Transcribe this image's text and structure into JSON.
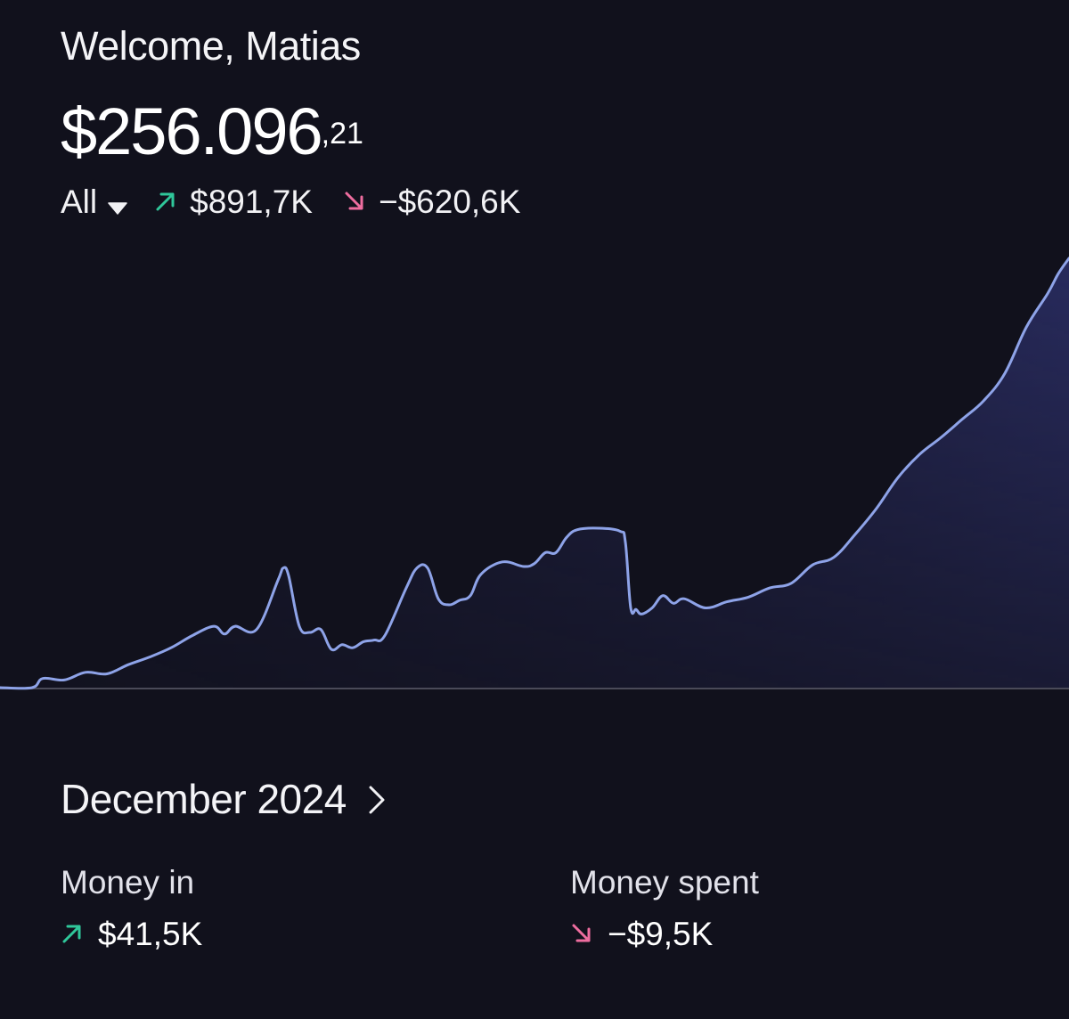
{
  "header": {
    "welcome": "Welcome, Matias"
  },
  "balance": {
    "main": "$256.096",
    "cents": ",21"
  },
  "summary": {
    "filter_label": "All",
    "money_in": "$891,7K",
    "money_out": "−$620,6K"
  },
  "month_section": {
    "title": "December 2024",
    "money_in_label": "Money in",
    "money_in_value": "$41,5K",
    "money_spent_label": "Money spent",
    "money_spent_value": "−$9,5K"
  },
  "colors": {
    "background": "#11111c",
    "line": "#8ea3e8",
    "positive": "#2fc79a",
    "negative": "#ee6d9f",
    "baseline": "#4a4a58"
  },
  "icons": {
    "filter_caret": "caret-down-icon",
    "up": "arrow-up-right-icon",
    "down": "arrow-down-right-icon",
    "month_chevron": "chevron-right-icon"
  },
  "chart_data": {
    "type": "area",
    "x": [
      0,
      0.03,
      0.04,
      0.06,
      0.08,
      0.1,
      0.12,
      0.14,
      0.16,
      0.18,
      0.2,
      0.21,
      0.22,
      0.24,
      0.26,
      0.265,
      0.27,
      0.28,
      0.29,
      0.3,
      0.31,
      0.32,
      0.33,
      0.34,
      0.35,
      0.36,
      0.38,
      0.39,
      0.4,
      0.41,
      0.42,
      0.43,
      0.44,
      0.45,
      0.47,
      0.49,
      0.5,
      0.51,
      0.52,
      0.53,
      0.54,
      0.56,
      0.58,
      0.585,
      0.59,
      0.595,
      0.6,
      0.61,
      0.62,
      0.63,
      0.64,
      0.66,
      0.68,
      0.7,
      0.72,
      0.74,
      0.76,
      0.78,
      0.8,
      0.82,
      0.84,
      0.86,
      0.88,
      0.9,
      0.92,
      0.94,
      0.96,
      0.98,
      0.99,
      1.0
    ],
    "values": [
      0,
      0,
      6,
      5,
      10,
      9,
      15,
      20,
      26,
      34,
      40,
      35,
      40,
      38,
      70,
      78,
      73,
      40,
      36,
      38,
      25,
      28,
      26,
      30,
      31,
      34,
      65,
      78,
      78,
      58,
      54,
      57,
      60,
      74,
      82,
      79,
      81,
      88,
      88,
      98,
      103,
      104,
      102,
      95,
      52,
      51,
      48,
      52,
      60,
      55,
      58,
      52,
      56,
      59,
      65,
      68,
      80,
      85,
      100,
      117,
      137,
      152,
      163,
      175,
      187,
      205,
      235,
      257,
      270,
      280
    ]
  }
}
